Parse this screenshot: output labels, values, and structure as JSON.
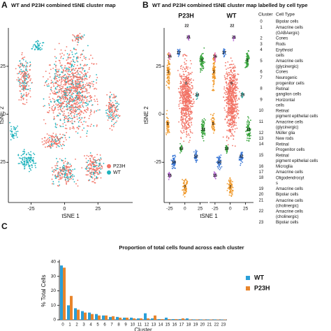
{
  "chart_data": [
    {
      "type": "scatter",
      "label": "A",
      "title": "WT and P23H combined tSNE cluster map",
      "xlabel": "tSNE 1",
      "ylabel": "tSNE 2",
      "xlim": [
        -42,
        51
      ],
      "ylim": [
        -46,
        45
      ],
      "xticks": [
        -25,
        0,
        25
      ],
      "yticks": [
        -25,
        0,
        25
      ],
      "series": [
        {
          "name": "P23H",
          "color": "#f27467"
        },
        {
          "name": "WT",
          "color": "#1fb3bd"
        }
      ],
      "legend": "lower right"
    },
    {
      "type": "scatter",
      "label": "B",
      "title": "WT and P23H combined tSNE cluster map labelled by cell type",
      "xlabel": "tSNE 1",
      "ylabel": "tSNE 2",
      "xlim": [
        -34,
        38
      ],
      "ylim": [
        -46,
        45
      ],
      "yticks": [
        -25,
        0,
        25
      ],
      "panels": [
        {
          "title": "P23H",
          "xticks": [
            -25,
            0,
            25
          ]
        },
        {
          "title": "WT",
          "xticks": [
            -25,
            0,
            25
          ]
        }
      ],
      "legend_headers": [
        "Cluster",
        "Cell Type"
      ],
      "clusters": [
        {
          "id": 0,
          "type": "Bipolar cells"
        },
        {
          "id": 1,
          "type": "Amacrine cells (GABAergic)"
        },
        {
          "id": 2,
          "type": "Cones"
        },
        {
          "id": 3,
          "type": "Rods"
        },
        {
          "id": 4,
          "type": "Erythroid cells"
        },
        {
          "id": 5,
          "type": "Amacrine cells (glycinergic)"
        },
        {
          "id": 6,
          "type": "Cones"
        },
        {
          "id": 7,
          "type": "Neurogenic progenitor cells"
        },
        {
          "id": 8,
          "type": "Retinal ganglion cells"
        },
        {
          "id": 9,
          "type": "Horizontal cells"
        },
        {
          "id": 10,
          "type": "Retinal pigment epithelial cells"
        },
        {
          "id": 11,
          "type": "Amacrine cells (glycinergic)"
        },
        {
          "id": 12,
          "type": "Müller glia"
        },
        {
          "id": 13,
          "type": "New rods"
        },
        {
          "id": 14,
          "type": "Retinal Progenitor cells"
        },
        {
          "id": 15,
          "type": "Retinal pigment epithelial cells"
        },
        {
          "id": 16,
          "type": "Microglia"
        },
        {
          "id": 17,
          "type": "Amacrine cells"
        },
        {
          "id": 18,
          "type": "Oligodendrocytes"
        },
        {
          "id": 19,
          "type": "Amacrine cells"
        },
        {
          "id": 20,
          "type": "Bipolar cells"
        },
        {
          "id": 21,
          "type": "Amacrine cells (cholinergic)"
        },
        {
          "id": 22,
          "type": "Amacrine cells (cholinergic)"
        },
        {
          "id": 23,
          "type": "Bipolar cells"
        }
      ]
    },
    {
      "type": "bar",
      "label": "C",
      "title": "Proportion of total cells found across each cluster",
      "xlabel": "Cluster",
      "ylabel": "% Total Cells",
      "categories": [
        "0",
        "1",
        "2",
        "3",
        "4",
        "5",
        "6",
        "7",
        "8",
        "9",
        "10",
        "11",
        "12",
        "13",
        "14",
        "15",
        "16",
        "17",
        "18",
        "19",
        "20",
        "21",
        "22",
        "23"
      ],
      "ylim": [
        0,
        40
      ],
      "yticks": [
        0,
        10,
        20,
        30,
        40
      ],
      "series": [
        {
          "name": "WT",
          "color": "#2a9fd8",
          "values": [
            37.5,
            10,
            8,
            6,
            5,
            4,
            3,
            2,
            2,
            1.5,
            1.5,
            1,
            4.5,
            1,
            0.5,
            1.5,
            0.5,
            0.5,
            1,
            0.3,
            0.3,
            0.3,
            0.3,
            0.2
          ]
        },
        {
          "name": "P23H",
          "color": "#e8852c",
          "values": [
            36,
            16.5,
            7,
            5,
            4,
            3,
            3,
            2.5,
            1.5,
            1.5,
            1,
            1,
            1,
            3,
            0.5,
            0.5,
            0.5,
            1,
            0.3,
            0.3,
            0.2,
            0.2,
            0.2,
            0.2
          ]
        }
      ],
      "legend": "right"
    }
  ]
}
